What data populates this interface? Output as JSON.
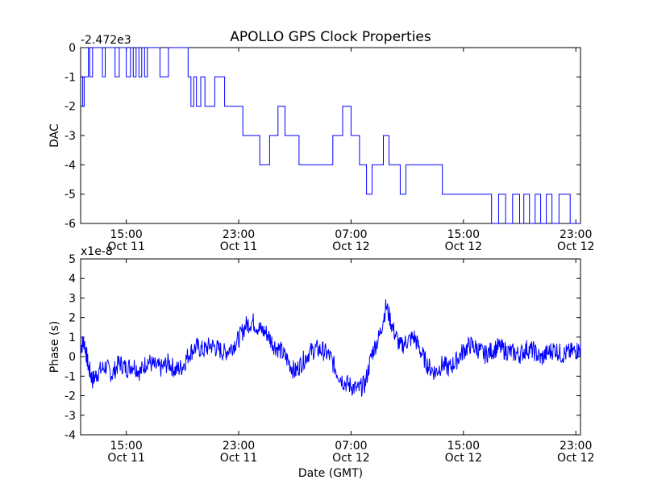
{
  "title": "APOLLO GPS Clock Properties",
  "colors": {
    "trace": "#0000ff",
    "axes": "#000000",
    "background": "#ffffff"
  },
  "chart_data": [
    {
      "type": "line",
      "title": "APOLLO GPS Clock Properties",
      "xlabel": "",
      "ylabel": "DAC",
      "offset_label": "-2.472e3",
      "xlim": [
        "Oct 11 11:45",
        "Oct 12 23:20"
      ],
      "ylim": [
        -6,
        0
      ],
      "yticks": [
        "0",
        "-1",
        "-2",
        "-3",
        "-4",
        "-5",
        "-6"
      ],
      "xticks": [
        {
          "time": "15:00",
          "date": "Oct 11"
        },
        {
          "time": "23:00",
          "date": "Oct 11"
        },
        {
          "time": "07:00",
          "date": "Oct 12"
        },
        {
          "time": "15:00",
          "date": "Oct 12"
        },
        {
          "time": "23:00",
          "date": "Oct 12"
        }
      ],
      "series": [
        {
          "x_hours_from_oct11_0000": [
            11.75,
            11.9,
            12.0,
            12.3,
            12.4,
            12.6,
            12.8,
            13.3,
            13.5,
            14.2,
            14.5,
            15.0,
            15.3,
            15.5,
            15.7,
            15.9,
            16.1,
            16.3,
            16.5,
            17.0,
            17.4,
            18.0,
            18.2,
            19.4,
            19.6,
            19.8,
            20.0,
            20.3,
            20.6,
            21.0,
            21.3,
            22.0,
            22.6,
            23.0,
            23.3,
            24.0,
            24.5,
            25.2,
            25.5,
            25.8,
            26.3,
            26.7,
            27.3,
            27.8,
            28.2,
            29.0,
            29.7,
            30.0,
            30.4,
            31.0,
            31.6,
            32.1,
            32.5,
            32.9,
            33.3,
            33.7,
            34.0,
            34.5,
            34.9,
            35.2,
            35.6,
            36.0,
            36.5,
            37.0,
            37.5,
            38.2,
            38.8,
            39.3,
            39.7,
            40.2,
            40.7,
            41.0,
            41.5,
            42.0,
            42.5,
            43.0,
            43.3,
            43.7,
            44.1,
            44.5,
            44.9,
            45.3,
            45.8,
            46.2,
            46.6,
            47.0,
            47.3
          ],
          "values": [
            -1,
            -2,
            -1,
            0,
            -1,
            0,
            0,
            -1,
            0,
            -1,
            0,
            -1,
            0,
            -1,
            0,
            -1,
            0,
            -1,
            0,
            0,
            -1,
            0,
            0,
            -1,
            -2,
            -1,
            -2,
            -1,
            -2,
            -2,
            -1,
            -2,
            -2,
            -2,
            -3,
            -3,
            -4,
            -3,
            -3,
            -2,
            -3,
            -3,
            -4,
            -4,
            -4,
            -4,
            -3,
            -3,
            -2,
            -3,
            -4,
            -5,
            -4,
            -4,
            -3,
            -4,
            -4,
            -5,
            -4,
            -4,
            -4,
            -4,
            -4,
            -4,
            -5,
            -5,
            -5,
            -5,
            -5,
            -5,
            -5,
            -6,
            -5,
            -6,
            -5,
            -6,
            -5,
            -6,
            -5,
            -6,
            -5,
            -6,
            -5,
            -5,
            -6,
            -6,
            -6
          ]
        }
      ]
    },
    {
      "type": "line",
      "title": "",
      "xlabel": "Date (GMT)",
      "ylabel": "Phase (s)",
      "offset_label": "x1e-8",
      "xlim": [
        "Oct 11 11:45",
        "Oct 12 23:20"
      ],
      "ylim": [
        -4,
        5
      ],
      "yticks": [
        "5",
        "4",
        "3",
        "2",
        "1",
        "0",
        "-1",
        "-2",
        "-3",
        "-4"
      ],
      "xticks": [
        {
          "time": "15:00",
          "date": "Oct 11"
        },
        {
          "time": "23:00",
          "date": "Oct 11"
        },
        {
          "time": "07:00",
          "date": "Oct 12"
        },
        {
          "time": "15:00",
          "date": "Oct 12"
        },
        {
          "time": "23:00",
          "date": "Oct 12"
        }
      ],
      "series": [
        {
          "x_hours_from_oct11_0000": [
            11.75,
            12.0,
            12.3,
            12.6,
            13.0,
            13.5,
            14.0,
            14.5,
            15.0,
            15.5,
            16.0,
            16.5,
            17.0,
            17.5,
            18.0,
            18.5,
            19.0,
            19.5,
            20.0,
            20.5,
            21.0,
            21.5,
            22.0,
            22.5,
            23.0,
            23.5,
            24.0,
            24.5,
            25.0,
            25.5,
            26.0,
            26.5,
            27.0,
            27.5,
            28.0,
            28.5,
            29.0,
            29.5,
            30.0,
            30.5,
            31.0,
            31.5,
            32.0,
            32.5,
            33.0,
            33.5,
            34.0,
            34.5,
            35.0,
            35.5,
            36.0,
            36.5,
            37.0,
            37.5,
            38.0,
            38.5,
            39.0,
            39.5,
            40.0,
            40.5,
            41.0,
            41.5,
            42.0,
            42.5,
            43.0,
            43.5,
            44.0,
            44.5,
            45.0,
            45.5,
            46.0,
            46.5,
            47.0,
            47.33
          ],
          "values": [
            0.5,
            0.8,
            -0.5,
            -1.2,
            -0.8,
            -0.5,
            -0.9,
            -0.3,
            -0.6,
            -0.4,
            -0.8,
            -0.2,
            -0.5,
            -0.6,
            -0.3,
            -0.7,
            -0.5,
            0.2,
            0.5,
            0.3,
            0.6,
            0.4,
            0.2,
            0.5,
            0.9,
            1.6,
            1.8,
            1.4,
            1.2,
            0.6,
            0.3,
            -0.2,
            -0.8,
            -0.3,
            0.2,
            0.4,
            0.3,
            0.0,
            -0.8,
            -1.3,
            -1.5,
            -1.7,
            -1.4,
            0.2,
            1.0,
            2.6,
            1.4,
            0.5,
            0.8,
            1.0,
            0.2,
            -0.5,
            -0.8,
            -0.4,
            -0.6,
            -0.2,
            0.3,
            0.6,
            0.4,
            0.1,
            0.3,
            0.5,
            0.3,
            0.2,
            0.1,
            0.4,
            0.3,
            -0.1,
            0.2,
            0.4,
            0.1,
            0.2,
            0.3,
            0.4
          ]
        }
      ]
    }
  ]
}
